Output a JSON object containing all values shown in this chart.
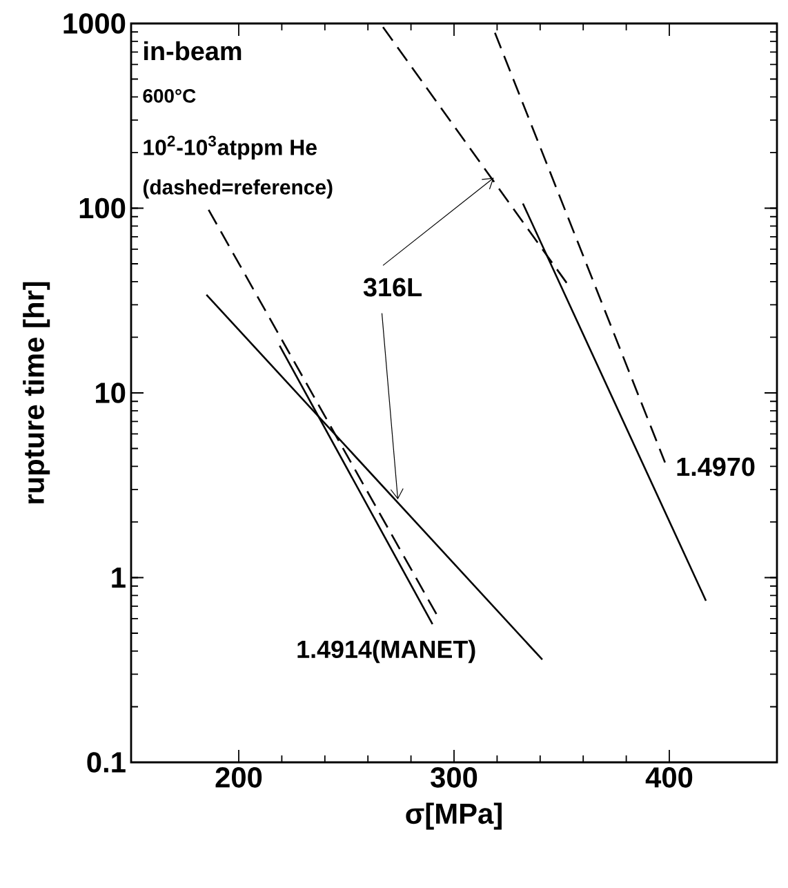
{
  "chart_data": {
    "type": "line",
    "xlabel": "σ[MPa]",
    "ylabel": "rupture time [hr]",
    "xlim": [
      150,
      450
    ],
    "xticks": [
      200,
      300,
      400
    ],
    "ylim": [
      0.1,
      1000
    ],
    "yticks": [
      0.1,
      1,
      10,
      100,
      1000
    ],
    "log": "y",
    "marker": "none",
    "series": [
      {
        "color": "#000000",
        "line_style": "dashed",
        "x": [
          267,
          354
        ],
        "values": [
          955,
          37
        ]
      },
      {
        "color": "#000000",
        "line_style": "solid",
        "x": [
          185,
          341
        ],
        "values": [
          34,
          0.36
        ]
      },
      {
        "color": "#000000",
        "line_style": "dashed",
        "x": [
          319,
          398
        ],
        "values": [
          890,
          4.2
        ]
      },
      {
        "color": "#000000",
        "line_style": "solid",
        "x": [
          332,
          417
        ],
        "values": [
          106,
          0.75
        ]
      },
      {
        "color": "#000000",
        "line_style": "dashed",
        "x": [
          186,
          293
        ],
        "values": [
          98,
          0.6
        ]
      },
      {
        "color": "#000000",
        "line_style": "solid",
        "x": [
          219,
          290
        ],
        "values": [
          18,
          0.56
        ]
      }
    ],
    "annotations": [
      "in-beam",
      "600°C",
      "10$^{2}$-10$^{3}$atppm He",
      "(dashed=reference)",
      {
        "text": "316L",
        "x": 318.5,
        "y": 146
      },
      "1.4914(MANET)",
      "1.4970"
    ]
  }
}
